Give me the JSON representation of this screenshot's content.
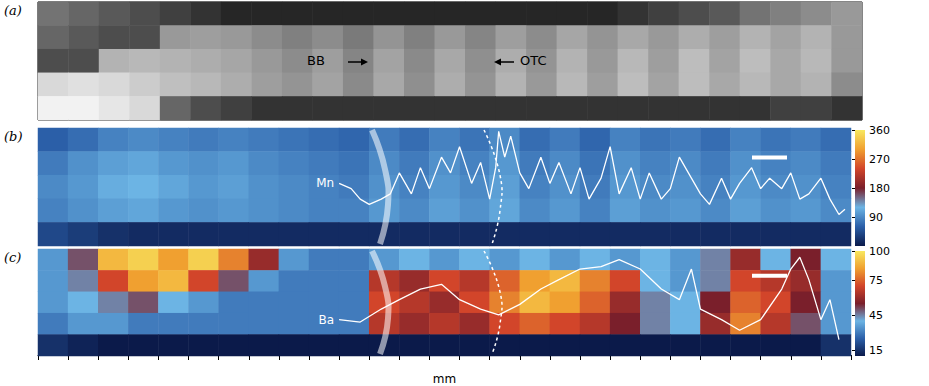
{
  "chart_data": [
    {
      "type": "heatmap",
      "label": "(a)",
      "annotations": [
        "BB",
        "OTC"
      ],
      "xlim": [
        0,
        27
      ],
      "cell_range": [
        0,
        100
      ],
      "cells": [
        [
          45,
          40,
          35,
          30,
          25,
          20,
          15,
          15,
          15,
          15,
          15,
          15,
          15,
          15,
          15,
          15,
          15,
          15,
          15,
          20,
          25,
          30,
          35,
          45,
          50,
          55,
          60
        ],
        [
          40,
          35,
          30,
          30,
          60,
          62,
          60,
          55,
          50,
          55,
          48,
          58,
          50,
          60,
          52,
          62,
          55,
          65,
          58,
          66,
          60,
          68,
          62,
          70,
          64,
          70,
          60
        ],
        [
          30,
          30,
          70,
          72,
          70,
          68,
          65,
          60,
          55,
          62,
          52,
          64,
          54,
          66,
          56,
          68,
          58,
          70,
          60,
          72,
          62,
          74,
          64,
          74,
          66,
          72,
          60
        ],
        [
          85,
          88,
          85,
          80,
          75,
          72,
          68,
          62,
          58,
          64,
          54,
          66,
          56,
          68,
          58,
          70,
          60,
          72,
          62,
          74,
          64,
          74,
          66,
          72,
          66,
          70,
          55
        ],
        [
          95,
          95,
          90,
          85,
          40,
          30,
          25,
          20,
          20,
          20,
          20,
          20,
          20,
          20,
          20,
          20,
          20,
          20,
          20,
          20,
          20,
          20,
          20,
          20,
          25,
          25,
          20
        ]
      ]
    },
    {
      "type": "heatmap",
      "label": "(b)",
      "xlim": [
        0,
        27
      ],
      "colorbar": {
        "range": [
          0,
          360
        ],
        "ticks": [
          90,
          180,
          270,
          360
        ]
      },
      "cells": [
        [
          60,
          70,
          85,
          90,
          85,
          80,
          85,
          80,
          75,
          70,
          65,
          80,
          70,
          85,
          75,
          90,
          70,
          80,
          65,
          85,
          75,
          80,
          70,
          85,
          75,
          80,
          70
        ],
        [
          80,
          95,
          105,
          110,
          100,
          95,
          100,
          90,
          85,
          80,
          75,
          90,
          80,
          95,
          85,
          100,
          80,
          90,
          75,
          95,
          85,
          90,
          80,
          95,
          85,
          90,
          80
        ],
        [
          90,
          100,
          115,
          120,
          110,
          100,
          105,
          95,
          90,
          85,
          80,
          95,
          85,
          100,
          90,
          105,
          85,
          95,
          80,
          100,
          90,
          95,
          85,
          100,
          90,
          95,
          85
        ],
        [
          85,
          95,
          105,
          110,
          100,
          95,
          100,
          95,
          90,
          85,
          85,
          100,
          90,
          105,
          95,
          110,
          90,
          100,
          85,
          105,
          95,
          100,
          90,
          105,
          95,
          100,
          90
        ],
        [
          40,
          30,
          20,
          15,
          15,
          15,
          15,
          15,
          15,
          15,
          15,
          15,
          15,
          15,
          15,
          15,
          15,
          15,
          15,
          15,
          15,
          15,
          15,
          15,
          15,
          15,
          15
        ]
      ],
      "profile": {
        "name": "Mn",
        "color": "#ffffff",
        "x": [
          10.0,
          10.4,
          10.7,
          11.0,
          11.4,
          11.7,
          12.0,
          12.4,
          12.7,
          13.0,
          13.4,
          13.7,
          14.0,
          14.4,
          14.7,
          15.0,
          15.2,
          15.3,
          15.5,
          15.7,
          16.0,
          16.3,
          16.7,
          17.0,
          17.3,
          17.7,
          18.0,
          18.3,
          18.7,
          19.0,
          19.3,
          19.7,
          20.0,
          20.3,
          20.7,
          21.0,
          21.3,
          21.7,
          22.0,
          22.3,
          22.7,
          23.0,
          23.3,
          23.7,
          24.0,
          24.3,
          24.7,
          25.0,
          25.3,
          25.6,
          26.0,
          26.3,
          26.6,
          26.8
        ],
        "values": [
          191,
          175,
          143,
          127,
          143,
          159,
          223,
          159,
          239,
          175,
          271,
          223,
          303,
          191,
          255,
          143,
          239,
          350,
          271,
          335,
          223,
          175,
          271,
          191,
          255,
          159,
          239,
          143,
          207,
          303,
          159,
          239,
          143,
          223,
          143,
          175,
          271,
          207,
          159,
          127,
          207,
          143,
          191,
          239,
          175,
          207,
          175,
          223,
          143,
          159,
          207,
          143,
          96,
          112
        ]
      }
    },
    {
      "type": "heatmap",
      "label": "(c)",
      "xlim": [
        0,
        27
      ],
      "xticks": [
        0,
        1,
        2,
        3,
        4,
        5,
        6,
        7,
        8,
        9,
        10,
        11,
        12,
        13,
        14,
        15,
        16,
        17,
        18,
        19,
        20,
        21,
        22,
        23,
        24,
        25,
        26,
        27
      ],
      "tick_labels": false,
      "xlabel": "mm",
      "colorbar": {
        "range": [
          10,
          100
        ],
        "ticks": [
          15,
          45,
          75,
          100
        ]
      },
      "cells": [
        [
          35,
          50,
          90,
          95,
          85,
          95,
          80,
          60,
          35,
          30,
          30,
          35,
          40,
          35,
          40,
          35,
          40,
          35,
          40,
          35,
          40,
          35,
          45,
          60,
          40,
          55,
          40
        ],
        [
          35,
          45,
          70,
          85,
          90,
          70,
          50,
          35,
          30,
          30,
          30,
          65,
          60,
          70,
          65,
          75,
          85,
          90,
          80,
          70,
          40,
          35,
          45,
          70,
          65,
          60,
          35
        ],
        [
          35,
          40,
          45,
          50,
          40,
          35,
          30,
          30,
          30,
          30,
          30,
          70,
          65,
          60,
          70,
          80,
          90,
          85,
          75,
          60,
          45,
          40,
          55,
          75,
          70,
          55,
          35
        ],
        [
          30,
          35,
          35,
          30,
          30,
          30,
          30,
          30,
          30,
          30,
          30,
          65,
          60,
          65,
          60,
          70,
          75,
          70,
          65,
          55,
          45,
          40,
          60,
          80,
          65,
          50,
          35
        ],
        [
          15,
          12,
          10,
          10,
          10,
          10,
          10,
          10,
          10,
          10,
          10,
          10,
          10,
          10,
          10,
          10,
          10,
          10,
          10,
          10,
          10,
          10,
          10,
          10,
          10,
          10,
          15
        ]
      ],
      "profile": {
        "name": "Ba",
        "color": "#ffffff",
        "x": [
          10.0,
          10.7,
          11.4,
          12.0,
          12.7,
          13.4,
          14.0,
          14.7,
          15.3,
          16.0,
          16.7,
          17.3,
          18.0,
          18.7,
          19.3,
          20.0,
          20.7,
          21.3,
          21.7,
          22.0,
          22.7,
          23.3,
          24.0,
          24.7,
          25.0,
          25.3,
          25.6,
          26.0,
          26.3,
          26.6
        ],
        "values": [
          40,
          38,
          49,
          57,
          66,
          70,
          57,
          49,
          44,
          53,
          66,
          74,
          83,
          85,
          91,
          83,
          66,
          57,
          83,
          49,
          40,
          31,
          40,
          66,
          83,
          93,
          74,
          40,
          57,
          23
        ]
      }
    }
  ]
}
